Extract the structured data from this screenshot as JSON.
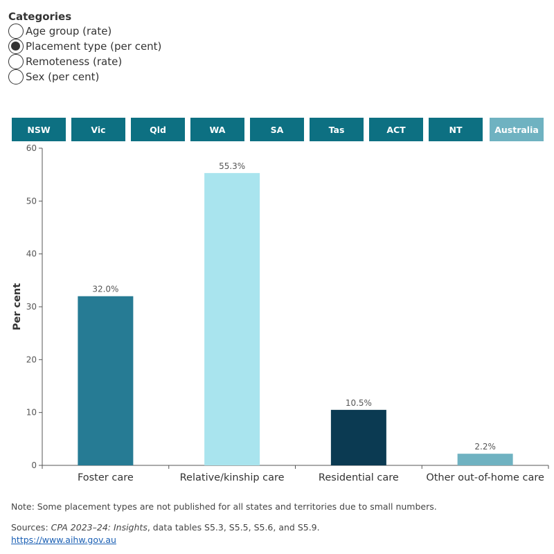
{
  "categories": {
    "title": "Categories",
    "options": [
      {
        "label": "Age group (rate)",
        "selected": false
      },
      {
        "label": "Placement type (per cent)",
        "selected": true
      },
      {
        "label": "Remoteness (rate)",
        "selected": false
      },
      {
        "label": "Sex (per cent)",
        "selected": false
      }
    ]
  },
  "state_tabs": {
    "items": [
      "NSW",
      "Vic",
      "Qld",
      "WA",
      "SA",
      "Tas",
      "ACT",
      "NT",
      "Australia"
    ],
    "selected": "Australia"
  },
  "colors": {
    "tab_bg": "#0d7082",
    "tab_selected_bg": "#6fb2c1",
    "bar_foster": "#267b94",
    "bar_relative": "#a9e4ee",
    "bar_residential": "#0b3a52",
    "bar_other": "#6fb2c1"
  },
  "chart_data": {
    "type": "bar",
    "categories": [
      "Foster care",
      "Relative/kinship care",
      "Residential care",
      "Other out-of-home care"
    ],
    "values": [
      32.0,
      55.3,
      10.5,
      2.2
    ],
    "data_labels": [
      "32.0%",
      "55.3%",
      "10.5%",
      "2.2%"
    ],
    "bar_colors": [
      "#267b94",
      "#a9e4ee",
      "#0b3a52",
      "#6fb2c1"
    ],
    "ylabel": "Per cent",
    "xlabel": "",
    "ylim": [
      0,
      60
    ],
    "yticks": [
      0,
      10,
      20,
      30,
      40,
      50,
      60
    ],
    "grid": false,
    "legend": "none"
  },
  "footer": {
    "note": "Note: Some placement types are not published for all states and territories due to small numbers.",
    "sources_prefix": "Sources: ",
    "sources_title": "CPA 2023–24: Insights",
    "sources_rest": ", data tables S5.3, S5.5, S5.6, and S5.9.",
    "link": "https://www.aihw.gov.au"
  }
}
